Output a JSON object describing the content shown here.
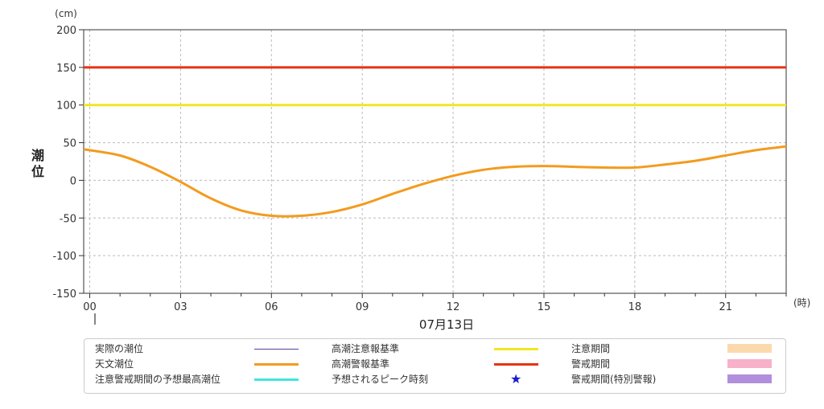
{
  "chart_data": {
    "type": "line",
    "y_unit": "(cm)",
    "ylabel": "潮位",
    "x_unit": "(時)",
    "date_label": "07月13日",
    "ylim": [
      -150,
      200
    ],
    "y_ticks": [
      200,
      150,
      100,
      50,
      0,
      -50,
      -100,
      -150
    ],
    "xlim": [
      -0.2,
      23
    ],
    "x_ticks": [
      0,
      3,
      6,
      9,
      12,
      15,
      18,
      21
    ],
    "x_tick_labels": [
      "00",
      "03",
      "06",
      "09",
      "12",
      "15",
      "18",
      "21"
    ],
    "grid": true,
    "thresholds": [
      {
        "name": "高潮注意報基準",
        "value": 100,
        "color": "#f0e623"
      },
      {
        "name": "高潮警報基準",
        "value": 150,
        "color": "#e63312"
      }
    ],
    "series": [
      {
        "name": "天文潮位",
        "color": "#f39b1e",
        "x": [
          -0.2,
          0,
          1,
          2,
          3,
          4,
          5,
          6,
          7,
          8,
          9,
          10,
          11,
          12,
          13,
          14,
          15,
          16,
          17,
          18,
          19,
          20,
          21,
          22,
          23
        ],
        "y": [
          41,
          40,
          33,
          18,
          -2,
          -24,
          -40,
          -47,
          -47,
          -42,
          -32,
          -18,
          -5,
          6,
          14,
          18,
          19,
          18,
          17,
          17,
          21,
          26,
          33,
          40,
          45
        ]
      }
    ]
  },
  "legend": {
    "items": [
      {
        "label": "実際の潮位",
        "kind": "line",
        "color": "#5b3f9c",
        "thickness": 1
      },
      {
        "label": "高潮注意報基準",
        "kind": "line",
        "color": "#f0e623",
        "thickness": 3
      },
      {
        "label": "注意期間",
        "kind": "box",
        "color": "#fcd9ad"
      },
      {
        "label": "天文潮位",
        "kind": "line",
        "color": "#f39b1e",
        "thickness": 3
      },
      {
        "label": "高潮警報基準",
        "kind": "line",
        "color": "#e63312",
        "thickness": 3
      },
      {
        "label": "警戒期間",
        "kind": "box",
        "color": "#f7b1c8"
      },
      {
        "label": "注意警戒期間の予想最高潮位",
        "kind": "line",
        "color": "#3fe6e0",
        "thickness": 3
      },
      {
        "label": "予想されるピーク時刻",
        "kind": "star",
        "color": "#1a1acc",
        "symbol": "★"
      },
      {
        "label": "警戒期間(特別警報)",
        "kind": "box",
        "color": "#b28fdc"
      }
    ]
  }
}
